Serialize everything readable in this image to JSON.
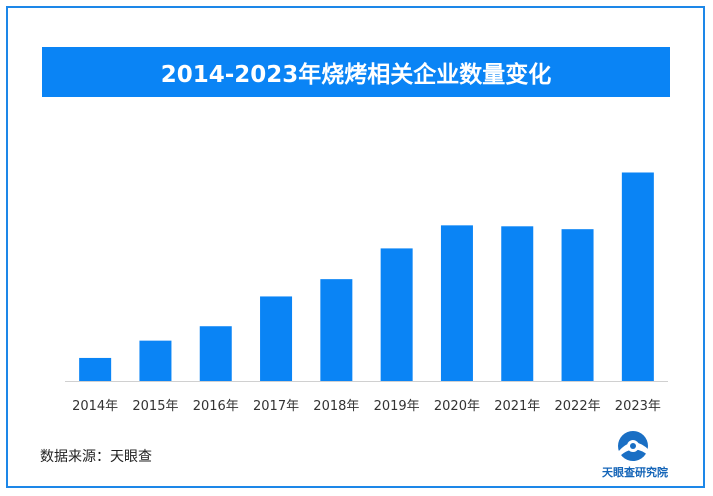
{
  "chart_data": {
    "type": "bar",
    "title": "2014-2023年烧烤相关企业数量变化",
    "categories": [
      "2014年",
      "2015年",
      "2016年",
      "2017年",
      "2018年",
      "2019年",
      "2020年",
      "2021年",
      "2022年",
      "2023年"
    ],
    "values": [
      24,
      42,
      57,
      88,
      106,
      138,
      162,
      161,
      158,
      217
    ],
    "ylim": [
      0,
      230
    ],
    "grid": false,
    "bar_color": "#0a84f5",
    "xlabel": "",
    "ylabel": ""
  },
  "footer": {
    "source_label": "数据来源：",
    "source_value": "天眼查"
  },
  "logo": {
    "text": "天眼查研究院",
    "icon": "tianyancha-logo-icon"
  },
  "colors": {
    "accent": "#0a84f5",
    "border": "#1d87e8"
  }
}
